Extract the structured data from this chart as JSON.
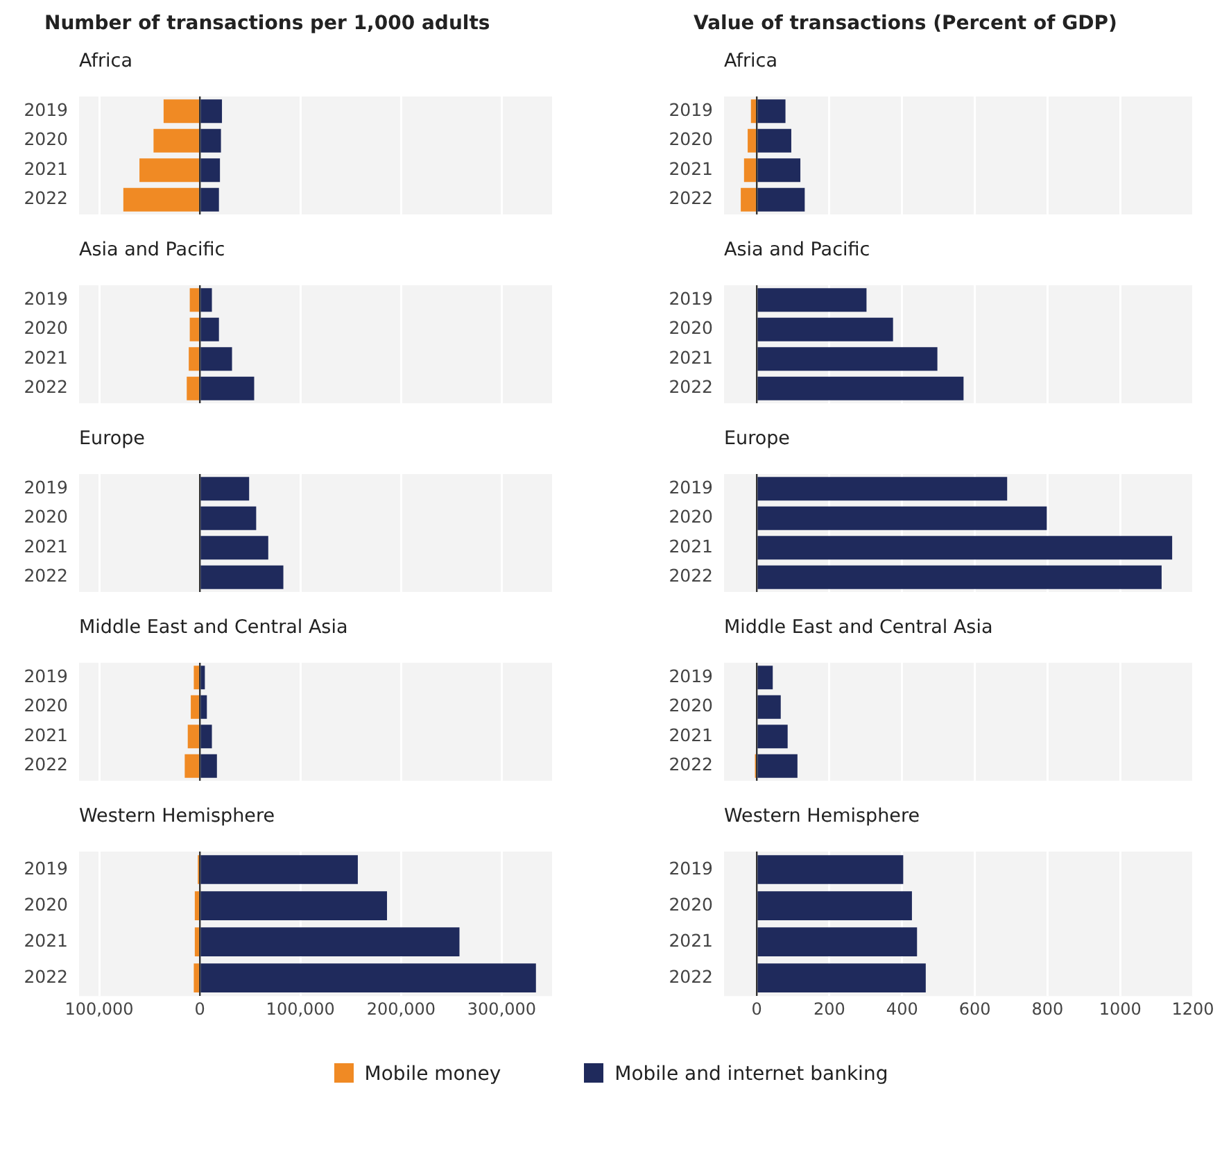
{
  "chart_data": [
    {
      "type": "bar",
      "orientation": "horizontal",
      "stacked": true,
      "grid": "x",
      "tick_labels": "y",
      "title": "Number of transactions per 1,000 adults",
      "subtitle": "Africa",
      "categories": [
        "2019",
        "2020",
        "2021",
        "2022"
      ],
      "xlim": [
        -120000,
        350000
      ],
      "xticks": [
        {
          "value": -100000,
          "label": null
        },
        {
          "value": 0,
          "label": null
        },
        {
          "value": 100000,
          "label": null
        },
        {
          "value": 200000,
          "label": null
        },
        {
          "value": 300000,
          "label": null
        }
      ],
      "series": [
        {
          "color": "#f08a24",
          "values": [
            -36000,
            -46000,
            -60000,
            -76000
          ]
        },
        {
          "color": "#1f2a5c",
          "values": [
            22000,
            21000,
            20000,
            19000
          ]
        }
      ]
    },
    {
      "type": "bar",
      "orientation": "horizontal",
      "stacked": true,
      "grid": "x",
      "tick_labels": "y",
      "title": "Value of transactions (Percent of GDP)",
      "subtitle": "Africa",
      "categories": [
        "2019",
        "2020",
        "2021",
        "2022"
      ],
      "xlim": [
        -90,
        1200
      ],
      "xticks": [
        {
          "value": 0,
          "label": null
        },
        {
          "value": 200,
          "label": null
        },
        {
          "value": 400,
          "label": null
        },
        {
          "value": 600,
          "label": null
        },
        {
          "value": 800,
          "label": null
        },
        {
          "value": 1000,
          "label": null
        },
        {
          "value": 1200,
          "label": null
        }
      ],
      "series": [
        {
          "color": "#f08a24",
          "values": [
            -16,
            -25,
            -35,
            -44
          ]
        },
        {
          "color": "#1f2a5c",
          "values": [
            79,
            95,
            120,
            132
          ]
        }
      ]
    },
    {
      "type": "bar",
      "orientation": "horizontal",
      "stacked": true,
      "grid": "x",
      "tick_labels": "y",
      "title": "Asia and Pacific",
      "categories": [
        "2019",
        "2020",
        "2021",
        "2022"
      ],
      "xlim": [
        -120000,
        350000
      ],
      "xticks": [
        {
          "value": -100000,
          "label": null
        },
        {
          "value": 0,
          "label": null
        },
        {
          "value": 100000,
          "label": null
        },
        {
          "value": 200000,
          "label": null
        },
        {
          "value": 300000,
          "label": null
        }
      ],
      "series": [
        {
          "color": "#f08a24",
          "values": [
            -10000,
            -10000,
            -11000,
            -13000
          ]
        },
        {
          "color": "#1f2a5c",
          "values": [
            12000,
            19000,
            32000,
            54000
          ]
        }
      ]
    },
    {
      "type": "bar",
      "orientation": "horizontal",
      "stacked": true,
      "grid": "x",
      "tick_labels": "y",
      "title": "Asia and Pacific",
      "categories": [
        "2019",
        "2020",
        "2021",
        "2022"
      ],
      "xlim": [
        -90,
        1200
      ],
      "xticks": [
        {
          "value": 0,
          "label": null
        },
        {
          "value": 200,
          "label": null
        },
        {
          "value": 400,
          "label": null
        },
        {
          "value": 600,
          "label": null
        },
        {
          "value": 800,
          "label": null
        },
        {
          "value": 1000,
          "label": null
        },
        {
          "value": 1200,
          "label": null
        }
      ],
      "series": [
        {
          "color": "#f08a24",
          "values": [
            null,
            null,
            null,
            null
          ]
        },
        {
          "color": "#1f2a5c",
          "values": [
            302,
            375,
            497,
            569
          ]
        }
      ]
    },
    {
      "type": "bar",
      "orientation": "horizontal",
      "stacked": true,
      "grid": "x",
      "tick_labels": "y",
      "title": "Europe",
      "categories": [
        "2019",
        "2020",
        "2021",
        "2022"
      ],
      "xlim": [
        -120000,
        350000
      ],
      "xticks": [
        {
          "value": -100000,
          "label": null
        },
        {
          "value": 0,
          "label": null
        },
        {
          "value": 100000,
          "label": null
        },
        {
          "value": 200000,
          "label": null
        },
        {
          "value": 300000,
          "label": null
        }
      ],
      "series": [
        {
          "color": "#f08a24",
          "values": [
            null,
            null,
            null,
            null
          ]
        },
        {
          "color": "#1f2a5c",
          "values": [
            49000,
            56000,
            68000,
            83000
          ]
        }
      ]
    },
    {
      "type": "bar",
      "orientation": "horizontal",
      "stacked": true,
      "grid": "x",
      "tick_labels": "y",
      "title": "Europe",
      "categories": [
        "2019",
        "2020",
        "2021",
        "2022"
      ],
      "xlim": [
        -90,
        1200
      ],
      "xticks": [
        {
          "value": 0,
          "label": null
        },
        {
          "value": 200,
          "label": null
        },
        {
          "value": 400,
          "label": null
        },
        {
          "value": 600,
          "label": null
        },
        {
          "value": 800,
          "label": null
        },
        {
          "value": 1000,
          "label": null
        },
        {
          "value": 1200,
          "label": null
        }
      ],
      "series": [
        {
          "color": "#f08a24",
          "values": [
            null,
            null,
            null,
            null
          ]
        },
        {
          "color": "#1f2a5c",
          "values": [
            689,
            798,
            1143,
            1114
          ]
        }
      ]
    },
    {
      "type": "bar",
      "orientation": "horizontal",
      "stacked": true,
      "grid": "x",
      "tick_labels": "y",
      "title": "Middle East and Central Asia",
      "categories": [
        "2019",
        "2020",
        "2021",
        "2022"
      ],
      "xlim": [
        -120000,
        350000
      ],
      "xticks": [
        {
          "value": -100000,
          "label": null
        },
        {
          "value": 0,
          "label": null
        },
        {
          "value": 100000,
          "label": null
        },
        {
          "value": 200000,
          "label": null
        },
        {
          "value": 300000,
          "label": null
        }
      ],
      "series": [
        {
          "color": "#f08a24",
          "values": [
            -6000,
            -9000,
            -12000,
            -15000
          ]
        },
        {
          "color": "#1f2a5c",
          "values": [
            5000,
            7000,
            12000,
            17000
          ]
        }
      ]
    },
    {
      "type": "bar",
      "orientation": "horizontal",
      "stacked": true,
      "grid": "x",
      "tick_labels": "y",
      "title": "Middle East and Central Asia",
      "categories": [
        "2019",
        "2020",
        "2021",
        "2022"
      ],
      "xlim": [
        -90,
        1200
      ],
      "xticks": [
        {
          "value": 0,
          "label": null
        },
        {
          "value": 200,
          "label": null
        },
        {
          "value": 400,
          "label": null
        },
        {
          "value": 600,
          "label": null
        },
        {
          "value": 800,
          "label": null
        },
        {
          "value": 1000,
          "label": null
        },
        {
          "value": 1200,
          "label": null
        }
      ],
      "series": [
        {
          "color": "#f08a24",
          "values": [
            null,
            null,
            null,
            -5
          ]
        },
        {
          "color": "#1f2a5c",
          "values": [
            44,
            66,
            85,
            112
          ]
        }
      ]
    },
    {
      "type": "bar",
      "orientation": "horizontal",
      "stacked": true,
      "grid": "x",
      "title": "Western Hemisphere",
      "categories": [
        "2019",
        "2020",
        "2021",
        "2022"
      ],
      "xlim": [
        -120000,
        350000
      ],
      "xticks": [
        {
          "value": -100000,
          "label": "100,000"
        },
        0,
        {
          "value": 100000,
          "label": "100,000"
        },
        {
          "value": 200000,
          "label": "200,000"
        },
        {
          "value": 300000,
          "label": "300,000"
        }
      ],
      "series": [
        {
          "color": "#f08a24",
          "values": [
            -2000,
            -5000,
            -5000,
            -6000
          ]
        },
        {
          "color": "#1f2a5c",
          "values": [
            157000,
            186000,
            258000,
            334000
          ]
        }
      ]
    },
    {
      "type": "bar",
      "orientation": "horizontal",
      "stacked": true,
      "grid": "x",
      "legend": "bottom",
      "title": "Western Hemisphere",
      "categories": [
        "2019",
        "2020",
        "2021",
        "2022"
      ],
      "xlim": [
        -90,
        1200
      ],
      "xticks": [
        0,
        200,
        400,
        600,
        800,
        1000,
        1200
      ],
      "series": [
        {
          "name": "Mobile money",
          "color": "#f08a24",
          "values": [
            null,
            null,
            null,
            null
          ]
        },
        {
          "name": "Mobile and internet banking",
          "color": "#1f2a5c",
          "values": [
            403,
            427,
            441,
            465
          ]
        }
      ]
    }
  ]
}
